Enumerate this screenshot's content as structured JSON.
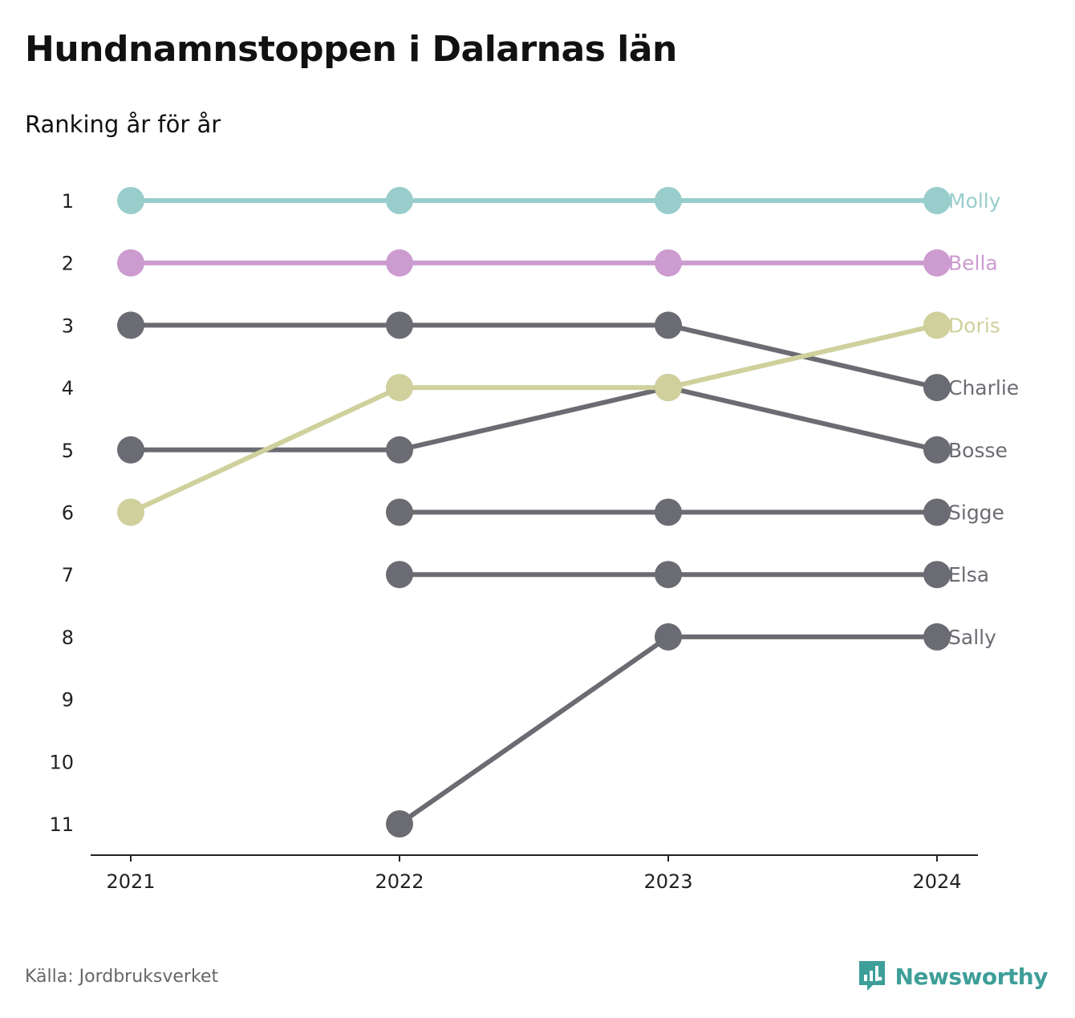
{
  "title": "Hundnamnstoppen i Dalarnas län",
  "subtitle": "Ranking år för år",
  "source": "Källa: Jordbruksverket",
  "brand": "Newsworthy",
  "colors": {
    "molly": "#98cdcc",
    "bella": "#cc9bd0",
    "doris": "#cfd09c",
    "default": "#6b6b73",
    "brand": "#3e9e98",
    "axis": "#222222"
  },
  "chart_data": {
    "type": "line",
    "x": [
      "2021",
      "2022",
      "2023",
      "2024"
    ],
    "y_ticks": [
      "1",
      "2",
      "3",
      "4",
      "5",
      "6",
      "7",
      "8",
      "9",
      "10",
      "11"
    ],
    "ylim": [
      1,
      11
    ],
    "y_reversed": true,
    "series": [
      {
        "name": "Charlie",
        "color_key": "default",
        "values": [
          3,
          3,
          3,
          4
        ]
      },
      {
        "name": "Bosse",
        "color_key": "default",
        "values": [
          5,
          5,
          4,
          5
        ]
      },
      {
        "name": "Sigge",
        "color_key": "default",
        "values": [
          null,
          6,
          6,
          6
        ]
      },
      {
        "name": "Elsa",
        "color_key": "default",
        "values": [
          null,
          7,
          7,
          7
        ]
      },
      {
        "name": "Sally",
        "color_key": "default",
        "values": [
          null,
          11,
          8,
          8
        ]
      },
      {
        "name": "Molly",
        "color_key": "molly",
        "values": [
          1,
          1,
          1,
          1
        ]
      },
      {
        "name": "Bella",
        "color_key": "bella",
        "values": [
          2,
          2,
          2,
          2
        ]
      },
      {
        "name": "Doris",
        "color_key": "doris",
        "values": [
          6,
          4,
          4,
          3
        ]
      }
    ]
  }
}
